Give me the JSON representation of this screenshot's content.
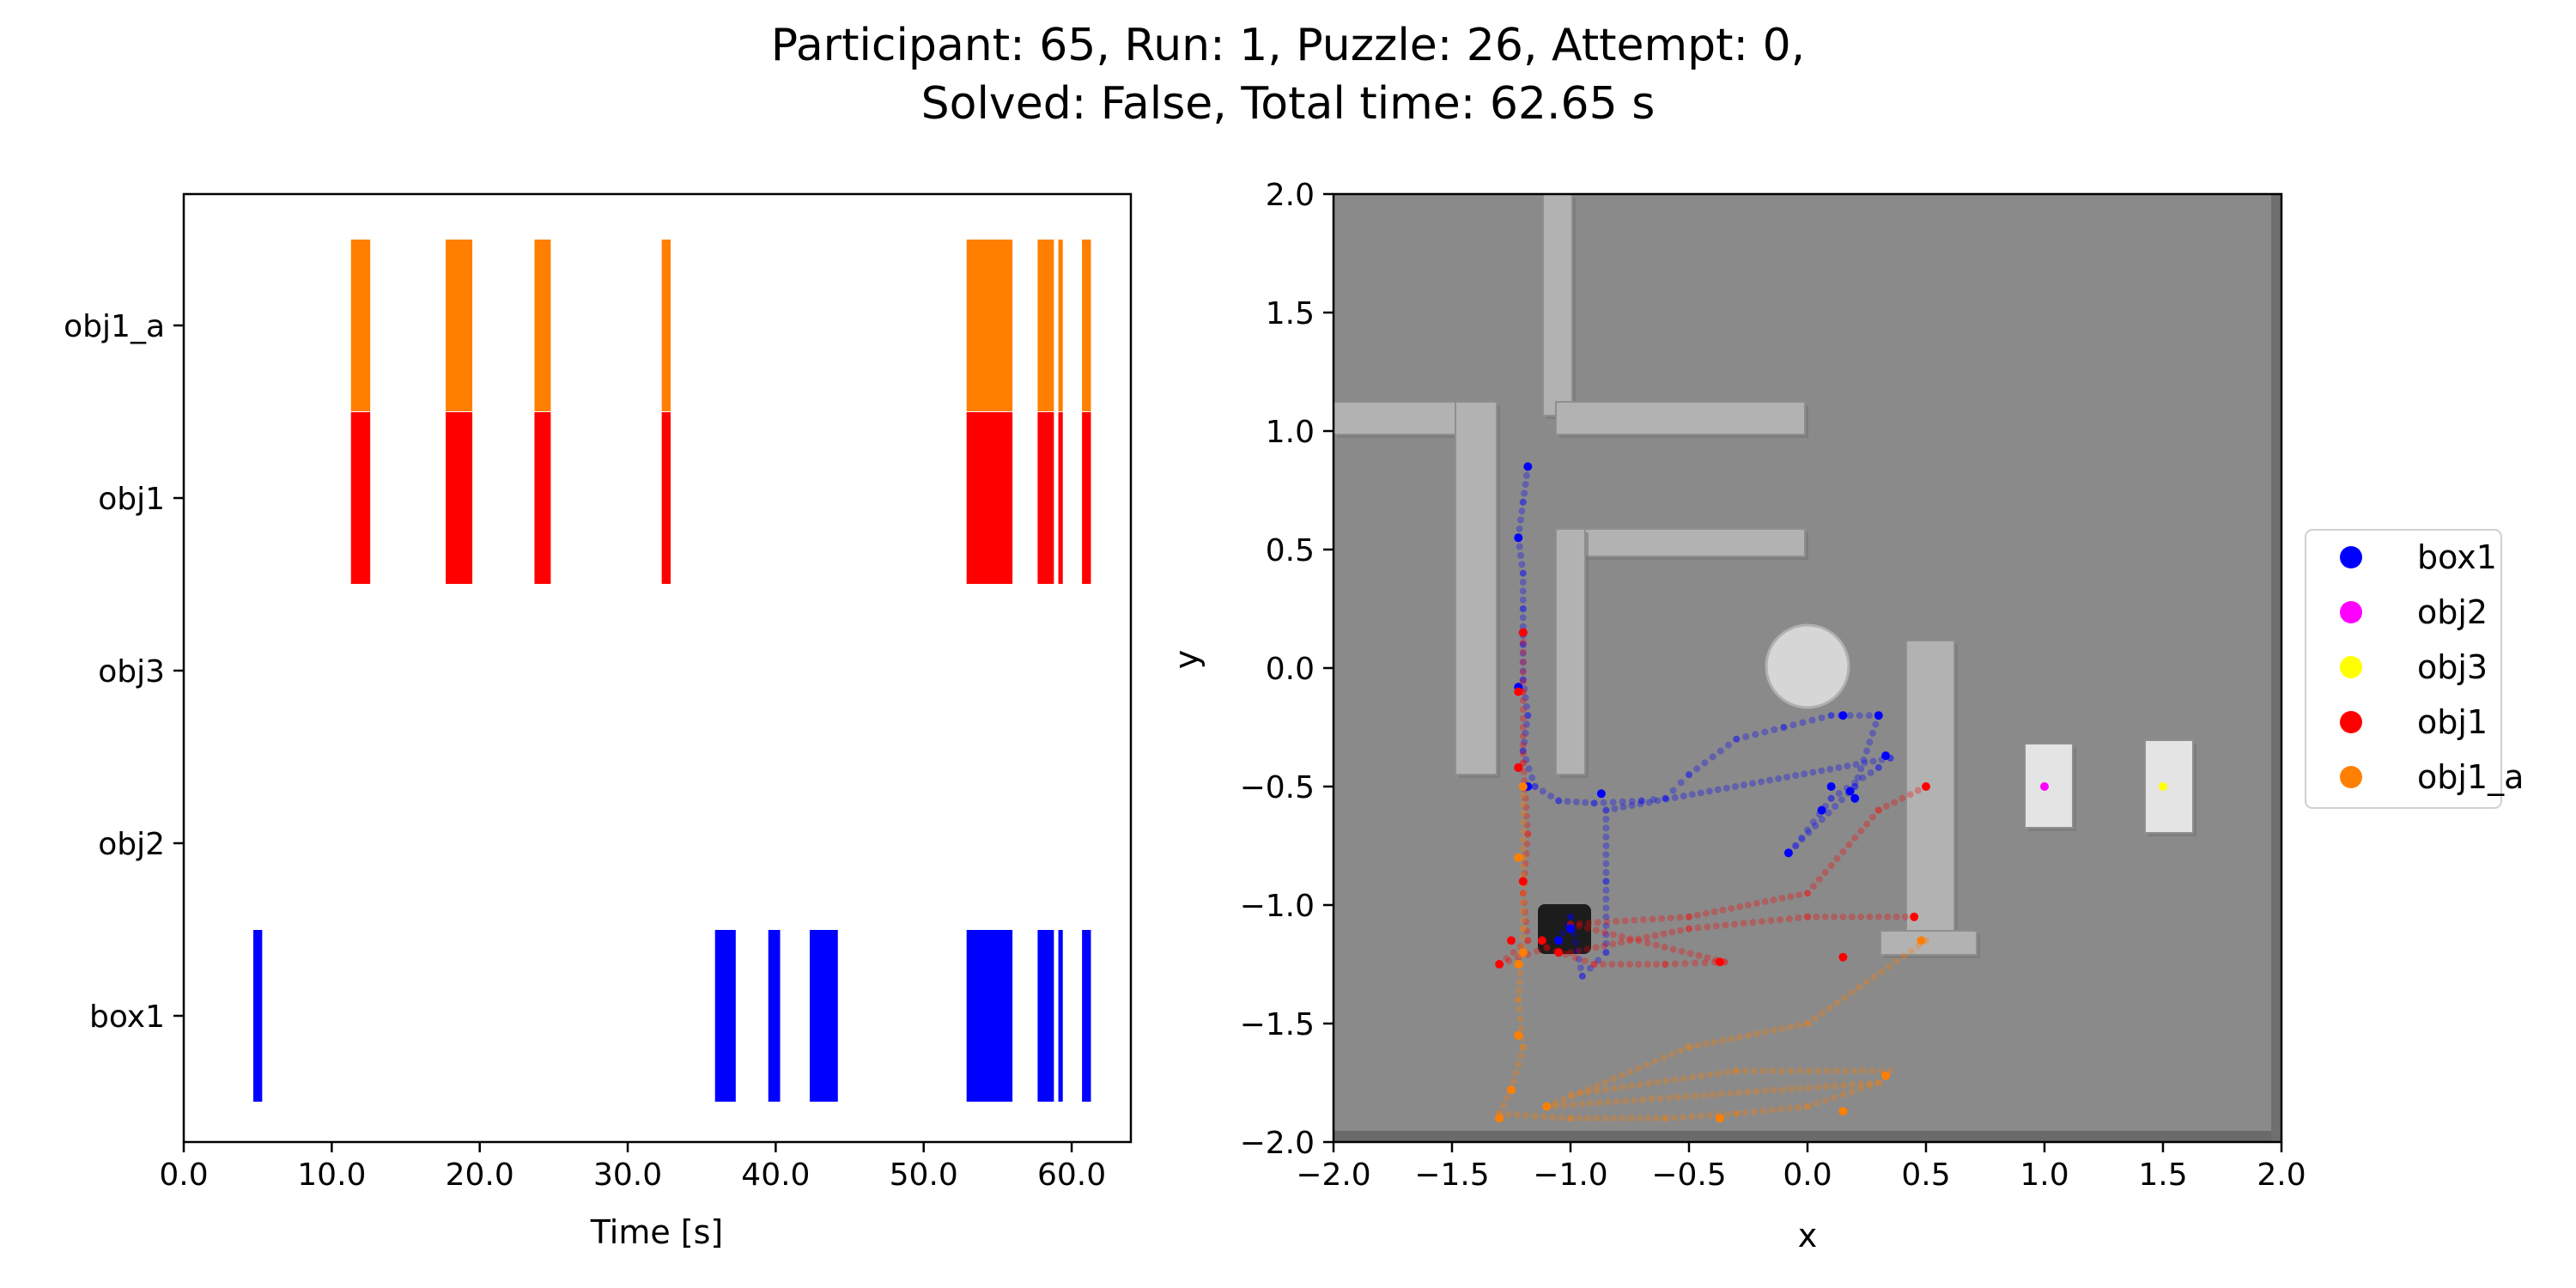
{
  "figure": {
    "title_line1": "Participant: 65, Run: 1, Puzzle: 26, Attempt: 0,",
    "title_line2": "Solved: False, Total time: 62.65 s"
  },
  "colors": {
    "box1": "#0000ff",
    "obj2": "#ff00ff",
    "obj3": "#ffff00",
    "obj1": "#ff0000",
    "obj1_a": "#ff7f00",
    "scene_background": "#8a8a8a"
  },
  "chart_data": [
    {
      "type": "bar",
      "orientation": "horizontal-timeline",
      "xlabel": "Time [s]",
      "ylabel": "",
      "xlim": [
        0,
        64
      ],
      "x_ticks": [
        "0.0",
        "10.0",
        "20.0",
        "30.0",
        "40.0",
        "50.0",
        "60.0"
      ],
      "x_tick_values": [
        0,
        10,
        20,
        30,
        40,
        50,
        60
      ],
      "categories": [
        "box1",
        "obj2",
        "obj3",
        "obj1",
        "obj1_a"
      ],
      "grid": false,
      "series": [
        {
          "name": "box1",
          "intervals": [
            [
              4.7,
              5.3
            ],
            [
              35.9,
              37.3
            ],
            [
              39.5,
              40.3
            ],
            [
              42.3,
              44.2
            ],
            [
              52.9,
              56.0
            ],
            [
              57.7,
              58.8
            ],
            [
              59.1,
              59.4
            ],
            [
              60.7,
              61.3
            ]
          ]
        },
        {
          "name": "obj2",
          "intervals": []
        },
        {
          "name": "obj3",
          "intervals": []
        },
        {
          "name": "obj1",
          "intervals": [
            [
              11.3,
              12.6
            ],
            [
              17.7,
              19.5
            ],
            [
              23.7,
              24.8
            ],
            [
              32.3,
              32.9
            ],
            [
              52.9,
              56.0
            ],
            [
              57.7,
              58.8
            ],
            [
              59.1,
              59.4
            ],
            [
              60.7,
              61.3
            ]
          ]
        },
        {
          "name": "obj1_a",
          "intervals": [
            [
              11.3,
              12.6
            ],
            [
              17.7,
              19.5
            ],
            [
              23.7,
              24.8
            ],
            [
              32.3,
              32.9
            ],
            [
              52.9,
              56.0
            ],
            [
              57.7,
              58.8
            ],
            [
              59.1,
              59.4
            ],
            [
              60.7,
              61.3
            ]
          ]
        }
      ]
    },
    {
      "type": "scatter",
      "xlabel": "x",
      "ylabel": "y",
      "xlim": [
        -2.0,
        2.0
      ],
      "ylim": [
        -2.0,
        2.0
      ],
      "x_ticks": [
        "−2.0",
        "−1.5",
        "−1.0",
        "−0.5",
        "0.0",
        "0.5",
        "1.0",
        "1.5",
        "2.0"
      ],
      "x_tick_values": [
        -2.0,
        -1.5,
        -1.0,
        -0.5,
        0.0,
        0.5,
        1.0,
        1.5,
        2.0
      ],
      "y_ticks": [
        "−2.0",
        "−1.5",
        "−1.0",
        "−0.5",
        "0.0",
        "0.5",
        "1.0",
        "1.5",
        "2.0"
      ],
      "y_tick_values": [
        -2.0,
        -1.5,
        -1.0,
        -0.5,
        0.0,
        0.5,
        1.0,
        1.5,
        2.0
      ],
      "legend_position": "right",
      "legend": [
        "box1",
        "obj2",
        "obj3",
        "obj1",
        "obj1_a"
      ],
      "series": [
        {
          "name": "box1",
          "trail": [
            [
              -1.18,
              0.85
            ],
            [
              -1.2,
              0.7
            ],
            [
              -1.22,
              0.55
            ],
            [
              -1.2,
              0.4
            ],
            [
              -1.2,
              0.25
            ],
            [
              -1.2,
              0.1
            ],
            [
              -1.2,
              -0.05
            ],
            [
              -1.18,
              -0.2
            ],
            [
              -1.2,
              -0.35
            ],
            [
              -1.15,
              -0.5
            ],
            [
              -1.05,
              -0.56
            ],
            [
              -0.9,
              -0.57
            ],
            [
              -0.7,
              -0.56
            ],
            [
              -0.6,
              -0.55
            ],
            [
              -0.5,
              -0.45
            ],
            [
              -0.3,
              -0.3
            ],
            [
              -0.1,
              -0.25
            ],
            [
              0.1,
              -0.2
            ],
            [
              0.3,
              -0.2
            ],
            [
              0.2,
              -0.5
            ],
            [
              -0.05,
              -0.75
            ],
            [
              0.1,
              -0.55
            ],
            [
              0.3,
              -0.42
            ],
            [
              0.35,
              -0.38
            ],
            [
              -0.85,
              -0.6
            ],
            [
              -0.85,
              -0.9
            ],
            [
              -0.85,
              -1.2
            ],
            [
              -0.95,
              -1.3
            ],
            [
              -1.0,
              -1.05
            ],
            [
              -1.05,
              -1.15
            ]
          ],
          "points": [
            [
              -1.18,
              0.85
            ],
            [
              -1.22,
              0.55
            ],
            [
              -1.2,
              0.15
            ],
            [
              -1.22,
              -0.08
            ],
            [
              -1.22,
              -0.42
            ],
            [
              -1.18,
              -0.5
            ],
            [
              -0.87,
              -0.53
            ],
            [
              -0.08,
              -0.78
            ],
            [
              0.06,
              -0.6
            ],
            [
              0.18,
              -0.52
            ],
            [
              0.2,
              -0.55
            ],
            [
              0.15,
              -0.2
            ],
            [
              0.3,
              -0.2
            ],
            [
              0.1,
              -0.5
            ],
            [
              0.33,
              -0.37
            ],
            [
              -1.0,
              -1.1
            ],
            [
              -1.05,
              -1.15
            ]
          ]
        },
        {
          "name": "obj2",
          "points": [
            [
              1.0,
              -0.5
            ]
          ]
        },
        {
          "name": "obj3",
          "points": [
            [
              1.5,
              -0.5
            ]
          ]
        },
        {
          "name": "obj1",
          "trail": [
            [
              -1.2,
              0.15
            ],
            [
              -1.2,
              -0.1
            ],
            [
              -1.2,
              -0.4
            ],
            [
              -1.18,
              -0.7
            ],
            [
              -1.2,
              -0.95
            ],
            [
              -1.18,
              -1.15
            ],
            [
              -1.3,
              -1.25
            ],
            [
              -1.1,
              -1.18
            ],
            [
              -0.9,
              -1.25
            ],
            [
              -0.6,
              -1.25
            ],
            [
              -0.35,
              -1.24
            ],
            [
              -1.0,
              -1.08
            ],
            [
              -0.5,
              -1.05
            ],
            [
              0.0,
              -0.95
            ],
            [
              0.3,
              -0.6
            ],
            [
              0.5,
              -0.5
            ],
            [
              -1.0,
              -1.2
            ],
            [
              -0.5,
              -1.1
            ],
            [
              0.0,
              -1.05
            ],
            [
              0.45,
              -1.05
            ]
          ],
          "points": [
            [
              -1.2,
              0.15
            ],
            [
              -1.22,
              -0.1
            ],
            [
              -1.22,
              -0.42
            ],
            [
              -1.2,
              -0.9
            ],
            [
              -1.25,
              -1.15
            ],
            [
              -1.3,
              -1.25
            ],
            [
              -1.12,
              -1.15
            ],
            [
              -1.05,
              -1.2
            ],
            [
              -0.37,
              -1.24
            ],
            [
              0.5,
              -0.5
            ],
            [
              0.45,
              -1.05
            ],
            [
              0.15,
              -1.22
            ]
          ]
        },
        {
          "name": "obj1_a",
          "trail": [
            [
              -1.2,
              -0.5
            ],
            [
              -1.2,
              -0.8
            ],
            [
              -1.2,
              -1.1
            ],
            [
              -1.22,
              -1.4
            ],
            [
              -1.2,
              -1.6
            ],
            [
              -1.25,
              -1.78
            ],
            [
              -1.3,
              -1.88
            ],
            [
              -1.0,
              -1.9
            ],
            [
              -0.6,
              -1.9
            ],
            [
              -0.3,
              -1.88
            ],
            [
              0.0,
              -1.85
            ],
            [
              0.3,
              -1.75
            ],
            [
              -1.1,
              -1.85
            ],
            [
              -0.5,
              -1.6
            ],
            [
              0.0,
              -1.5
            ],
            [
              0.5,
              -1.15
            ],
            [
              -1.0,
              -1.8
            ],
            [
              -0.3,
              -1.7
            ],
            [
              0.35,
              -1.7
            ]
          ],
          "points": [
            [
              -1.2,
              -0.5
            ],
            [
              -1.22,
              -0.8
            ],
            [
              -1.2,
              -1.2
            ],
            [
              -1.22,
              -1.55
            ],
            [
              -1.25,
              -1.78
            ],
            [
              -1.3,
              -1.9
            ],
            [
              -1.1,
              -1.85
            ],
            [
              -0.37,
              -1.9
            ],
            [
              0.15,
              -1.87
            ],
            [
              0.33,
              -1.72
            ],
            [
              0.48,
              -1.15
            ],
            [
              -1.22,
              -1.25
            ]
          ]
        }
      ]
    }
  ]
}
